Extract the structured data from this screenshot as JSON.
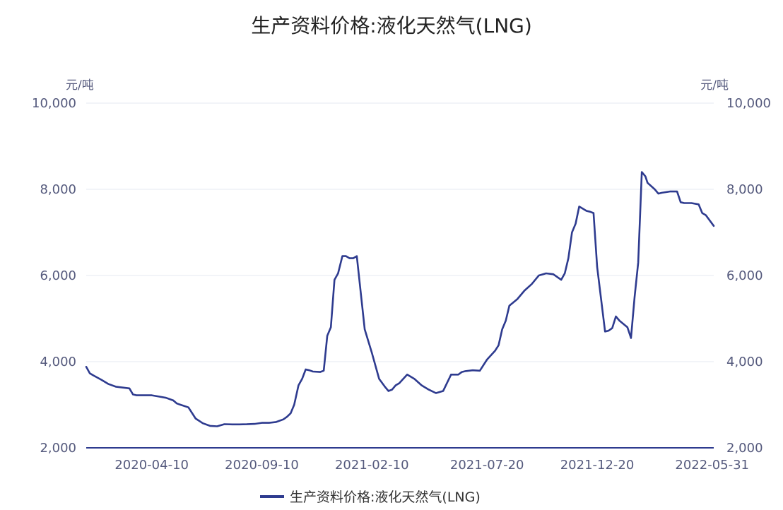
{
  "chart_data": {
    "type": "line",
    "title": "生产资料价格:液化天然气(LNG)",
    "y_unit_left": "元/吨",
    "y_unit_right": "元/吨",
    "ylim": [
      2000,
      10000
    ],
    "y_ticks": [
      2000,
      4000,
      6000,
      8000,
      10000
    ],
    "y_tick_labels": [
      "2,000",
      "4,000",
      "6,000",
      "8,000",
      "10,000"
    ],
    "x_ticks": [
      "2020-04-10",
      "2020-09-10",
      "2021-02-10",
      "2021-07-20",
      "2021-12-20",
      "2022-05-31"
    ],
    "x_range": [
      "2020-01-10",
      "2022-05-31"
    ],
    "grid": true,
    "legend_position": "bottom",
    "colors": {
      "series": "#2e3b8f",
      "grid": "#e4e8f2",
      "axis": "#2e3b8f",
      "text": "#555a7d"
    },
    "series": [
      {
        "name": "生产资料价格:液化天然气(LNG)",
        "points": [
          [
            "2020-01-10",
            3880
          ],
          [
            "2020-01-15",
            3730
          ],
          [
            "2020-01-20",
            3680
          ],
          [
            "2020-01-31",
            3580
          ],
          [
            "2020-02-10",
            3480
          ],
          [
            "2020-02-20",
            3420
          ],
          [
            "2020-02-29",
            3400
          ],
          [
            "2020-03-10",
            3380
          ],
          [
            "2020-03-15",
            3240
          ],
          [
            "2020-03-20",
            3220
          ],
          [
            "2020-03-31",
            3220
          ],
          [
            "2020-04-10",
            3220
          ],
          [
            "2020-04-20",
            3190
          ],
          [
            "2020-04-30",
            3160
          ],
          [
            "2020-05-10",
            3100
          ],
          [
            "2020-05-15",
            3030
          ],
          [
            "2020-05-20",
            3000
          ],
          [
            "2020-05-31",
            2940
          ],
          [
            "2020-06-10",
            2680
          ],
          [
            "2020-06-20",
            2570
          ],
          [
            "2020-06-30",
            2510
          ],
          [
            "2020-07-10",
            2500
          ],
          [
            "2020-07-20",
            2550
          ],
          [
            "2020-07-31",
            2545
          ],
          [
            "2020-08-10",
            2545
          ],
          [
            "2020-08-20",
            2548
          ],
          [
            "2020-08-31",
            2555
          ],
          [
            "2020-09-10",
            2580
          ],
          [
            "2020-09-20",
            2580
          ],
          [
            "2020-09-30",
            2600
          ],
          [
            "2020-10-10",
            2660
          ],
          [
            "2020-10-15",
            2720
          ],
          [
            "2020-10-20",
            2800
          ],
          [
            "2020-10-25",
            3000
          ],
          [
            "2020-10-31",
            3450
          ],
          [
            "2020-11-05",
            3600
          ],
          [
            "2020-11-10",
            3820
          ],
          [
            "2020-11-15",
            3800
          ],
          [
            "2020-11-20",
            3770
          ],
          [
            "2020-11-30",
            3760
          ],
          [
            "2020-12-05",
            3790
          ],
          [
            "2020-12-10",
            4600
          ],
          [
            "2020-12-15",
            4800
          ],
          [
            "2020-12-20",
            5900
          ],
          [
            "2020-12-25",
            6050
          ],
          [
            "2020-12-31",
            6450
          ],
          [
            "2021-01-05",
            6450
          ],
          [
            "2021-01-10",
            6400
          ],
          [
            "2021-01-15",
            6400
          ],
          [
            "2021-01-20",
            6450
          ],
          [
            "2021-01-31",
            4750
          ],
          [
            "2021-02-10",
            4200
          ],
          [
            "2021-02-20",
            3600
          ],
          [
            "2021-02-28",
            3420
          ],
          [
            "2021-03-05",
            3320
          ],
          [
            "2021-03-10",
            3350
          ],
          [
            "2021-03-15",
            3450
          ],
          [
            "2021-03-20",
            3500
          ],
          [
            "2021-03-31",
            3700
          ],
          [
            "2021-04-10",
            3600
          ],
          [
            "2021-04-20",
            3450
          ],
          [
            "2021-04-30",
            3350
          ],
          [
            "2021-05-10",
            3270
          ],
          [
            "2021-05-20",
            3320
          ],
          [
            "2021-05-31",
            3700
          ],
          [
            "2021-06-10",
            3700
          ],
          [
            "2021-06-15",
            3760
          ],
          [
            "2021-06-20",
            3780
          ],
          [
            "2021-06-30",
            3800
          ],
          [
            "2021-07-10",
            3790
          ],
          [
            "2021-07-20",
            4050
          ],
          [
            "2021-07-31",
            4250
          ],
          [
            "2021-08-05",
            4380
          ],
          [
            "2021-08-10",
            4750
          ],
          [
            "2021-08-15",
            4950
          ],
          [
            "2021-08-20",
            5300
          ],
          [
            "2021-08-31",
            5450
          ],
          [
            "2021-09-10",
            5650
          ],
          [
            "2021-09-20",
            5800
          ],
          [
            "2021-09-30",
            6000
          ],
          [
            "2021-10-10",
            6050
          ],
          [
            "2021-10-20",
            6030
          ],
          [
            "2021-10-31",
            5900
          ],
          [
            "2021-11-05",
            6050
          ],
          [
            "2021-11-10",
            6400
          ],
          [
            "2021-11-15",
            7000
          ],
          [
            "2021-11-20",
            7200
          ],
          [
            "2021-11-25",
            7600
          ],
          [
            "2021-11-30",
            7550
          ],
          [
            "2021-12-05",
            7500
          ],
          [
            "2021-12-10",
            7480
          ],
          [
            "2021-12-15",
            7450
          ],
          [
            "2021-12-20",
            6200
          ],
          [
            "2021-12-31",
            4700
          ],
          [
            "2022-01-05",
            4720
          ],
          [
            "2022-01-10",
            4780
          ],
          [
            "2022-01-15",
            5050
          ],
          [
            "2022-01-20",
            4950
          ],
          [
            "2022-01-31",
            4800
          ],
          [
            "2022-02-05",
            4550
          ],
          [
            "2022-02-10",
            5500
          ],
          [
            "2022-02-15",
            6300
          ],
          [
            "2022-02-20",
            8400
          ],
          [
            "2022-02-25",
            8300
          ],
          [
            "2022-02-28",
            8150
          ],
          [
            "2022-03-10",
            8000
          ],
          [
            "2022-03-15",
            7900
          ],
          [
            "2022-03-20",
            7920
          ],
          [
            "2022-03-31",
            7950
          ],
          [
            "2022-04-10",
            7950
          ],
          [
            "2022-04-15",
            7700
          ],
          [
            "2022-04-20",
            7680
          ],
          [
            "2022-04-30",
            7680
          ],
          [
            "2022-05-10",
            7650
          ],
          [
            "2022-05-15",
            7450
          ],
          [
            "2022-05-20",
            7400
          ],
          [
            "2022-05-31",
            7150
          ]
        ]
      }
    ]
  }
}
